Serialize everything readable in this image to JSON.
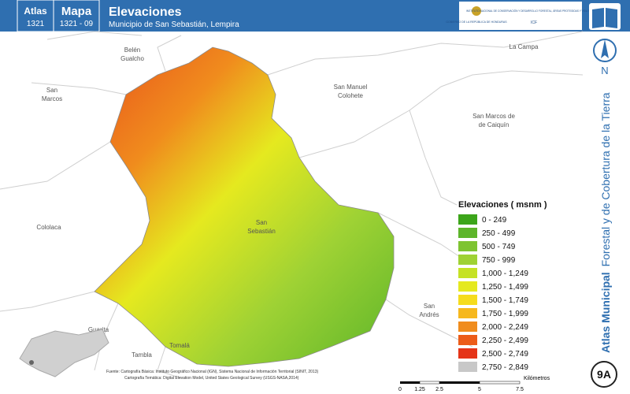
{
  "header": {
    "atlas_label": "Atlas",
    "atlas_code": "1321",
    "map_label": "Mapa",
    "map_code": "1321 - 09",
    "title": "Elevaciones",
    "subtitle": "Municipio de San Sebastián, Lempira"
  },
  "logos": {
    "government": "GOBIERNO DE LA REPÚBLICA DE HONDURAS",
    "institute": "INSTITUTO NACIONAL DE CONSERVACIÓN Y DESARROLLO FORESTAL, ÁREAS PROTEGIDAS Y VIDA SILVESTRE",
    "acronym": "ICF"
  },
  "places": [
    {
      "lines": [
        "Belén",
        "Gualcho"
      ]
    },
    {
      "lines": [
        "San",
        "Marcos"
      ]
    },
    {
      "lines": [
        "La Campa"
      ]
    },
    {
      "lines": [
        "San Manuel",
        "Colohete"
      ]
    },
    {
      "lines": [
        "San Marcos de",
        "de Caiquín"
      ]
    },
    {
      "lines": [
        "San",
        "Sebastián"
      ]
    },
    {
      "lines": [
        "Cololaca"
      ]
    },
    {
      "lines": [
        "San",
        "Andrés"
      ]
    },
    {
      "lines": [
        "Guarita"
      ]
    },
    {
      "lines": [
        "Tambla"
      ]
    },
    {
      "lines": [
        "Tomalá"
      ]
    }
  ],
  "legend": {
    "title": "Elevaciones ( msnm )",
    "items": [
      {
        "label": "0 - 249",
        "color": "#3ca51a"
      },
      {
        "label": "250 - 499",
        "color": "#5db52a"
      },
      {
        "label": "500 - 749",
        "color": "#7ec431"
      },
      {
        "label": "750 - 999",
        "color": "#9fd234"
      },
      {
        "label": "1,000 - 1,249",
        "color": "#c5e224"
      },
      {
        "label": "1,250 - 1,499",
        "color": "#e5e91f"
      },
      {
        "label": "1,500 - 1,749",
        "color": "#f5dc1d"
      },
      {
        "label": "1,750 - 1,999",
        "color": "#f6b81d"
      },
      {
        "label": "2,000 - 2,249",
        "color": "#f08c1d"
      },
      {
        "label": "2,250 - 2,499",
        "color": "#ec5c19"
      },
      {
        "label": "2,500 - 2,749",
        "color": "#e53418"
      },
      {
        "label": "2,750 - 2,849",
        "color": "#c8c8c8"
      }
    ]
  },
  "north": "N",
  "sidebar": {
    "bold": "Atlas Municipal",
    "rest": "Forestal y de Cobertura de la Tierra"
  },
  "badge": "9A",
  "sources": [
    "Fuente: Cartografía Básica: Instituto Geográfico Nacional (IGN), Sistema Nacional de Información Territorial (SINIT, 2013)",
    "Cartografía Temática: Digital Elevation Model, United States Geological Survey (USGS-NASA,2014)"
  ],
  "scale": {
    "ticks": [
      "0",
      "1.25",
      "2.5",
      "5",
      "7.5"
    ],
    "unit": "Kilómetros"
  }
}
